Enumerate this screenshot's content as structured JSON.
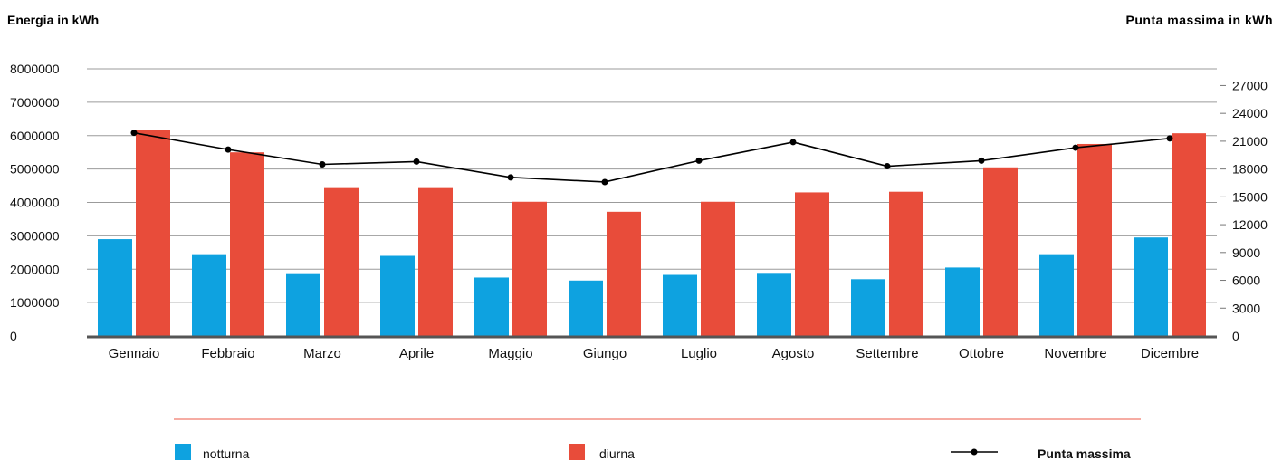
{
  "chart_data": {
    "type": "bar",
    "title": "",
    "ylabel_left": "Energia in kWh",
    "ylabel_right": "Punta massima in kWh",
    "categories": [
      "Gennaio",
      "Febbraio",
      "Marzo",
      "Aprile",
      "Maggio",
      "Giungo",
      "Luglio",
      "Agosto",
      "Settembre",
      "Ottobre",
      "Novembre",
      "Dicembre"
    ],
    "left_axis": {
      "min": 0,
      "max": 8000000,
      "ticks": [
        "0",
        "1000000",
        "2000000",
        "3000000",
        "4000000",
        "5000000",
        "6000000",
        "7000000",
        "8000000"
      ]
    },
    "right_axis": {
      "min": 0,
      "max": 28800,
      "ticks": [
        "0",
        "3000",
        "6000",
        "9000",
        "12000",
        "15000",
        "18000",
        "21000",
        "24000",
        "27000"
      ]
    },
    "grid": true,
    "legend_position": "bottom",
    "series": [
      {
        "name": "notturna",
        "type": "bar",
        "axis": "left",
        "color": "#0ea2e0",
        "values": [
          2900000,
          2450000,
          1880000,
          2400000,
          1750000,
          1660000,
          1830000,
          1890000,
          1700000,
          2050000,
          2450000,
          2950000
        ]
      },
      {
        "name": "diurna",
        "type": "bar",
        "axis": "left",
        "color": "#e84c3a",
        "values": [
          6170000,
          5500000,
          4430000,
          4430000,
          4020000,
          3720000,
          4020000,
          4300000,
          4320000,
          5050000,
          5750000,
          6070000
        ]
      },
      {
        "name": "Punta massima",
        "type": "line",
        "axis": "right",
        "color": "#000000",
        "values": [
          21900,
          20100,
          18500,
          18800,
          17100,
          16600,
          18900,
          20900,
          18300,
          18900,
          20300,
          21300
        ]
      }
    ]
  }
}
